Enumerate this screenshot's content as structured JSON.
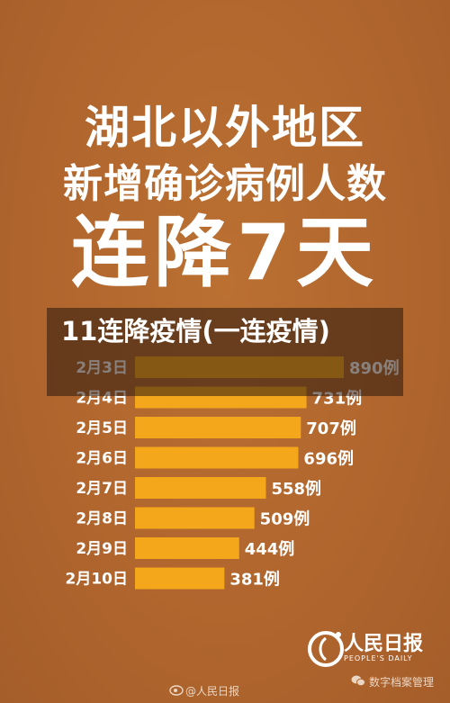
{
  "headline": {
    "line1": "湖北以外地区",
    "line2": "新增确诊病例人数",
    "line3": "连降7天"
  },
  "overlay_caption": "11连降疫情(一连疫情)",
  "chart_data": {
    "type": "bar",
    "orientation": "horizontal",
    "categories": [
      "2月3日",
      "2月4日",
      "2月5日",
      "2月6日",
      "2月7日",
      "2月8日",
      "2月9日",
      "2月10日"
    ],
    "values": [
      890,
      731,
      707,
      696,
      558,
      509,
      444,
      381
    ],
    "value_labels": [
      "890例",
      "731例",
      "707例",
      "696例",
      "558例",
      "509例",
      "444例",
      "381例"
    ],
    "bar_color": "#f5a71b",
    "title": "",
    "xlabel": "",
    "ylabel": "",
    "xlim": [
      0,
      890
    ],
    "grid": false
  },
  "logo": {
    "name_cn": "人民日报",
    "name_en": "PEOPLE'S DAILY"
  },
  "watermarks": {
    "weibo": "@人民日报",
    "wechat": "数字档案管理"
  },
  "colors": {
    "background": "#b3682f",
    "bar": "#f5a71b",
    "text": "#ffffff"
  }
}
